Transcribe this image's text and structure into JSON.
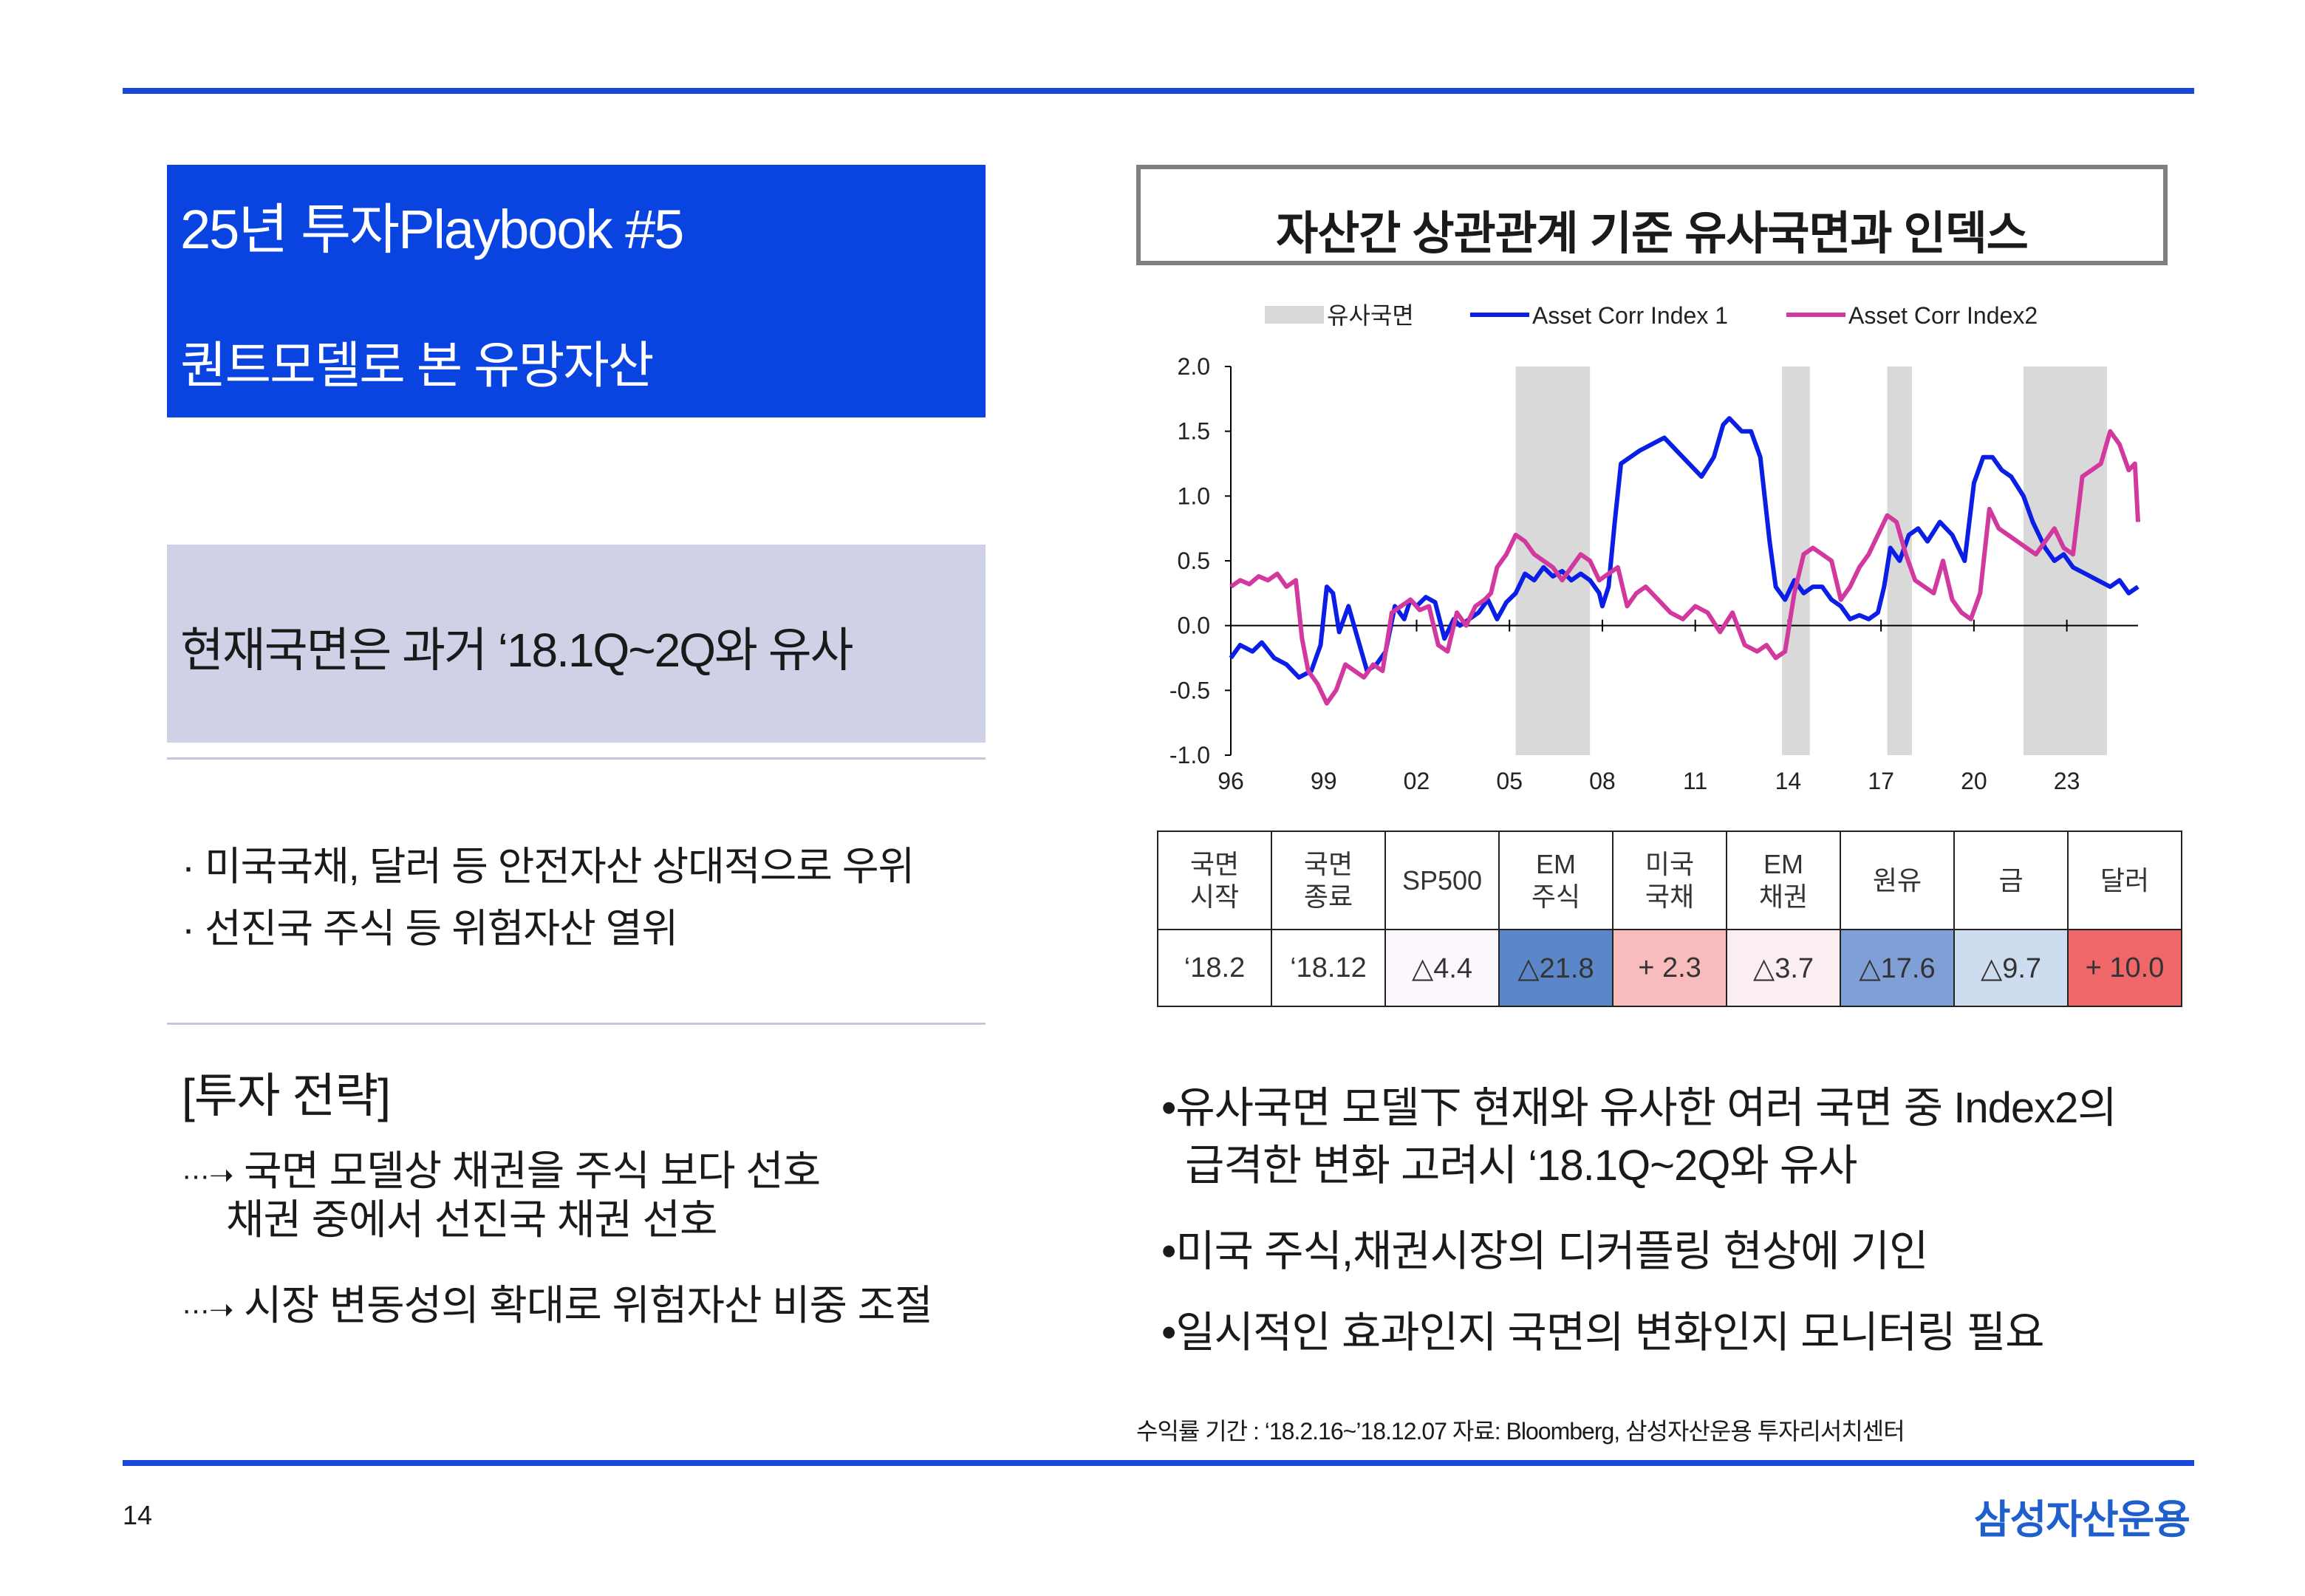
{
  "title": {
    "line1": "25년 투자Playbook #5",
    "line2": "퀀트모델로 본 유망자산"
  },
  "phase": {
    "text": "현재국면은 과거 ‘18.1Q~2Q와 유사"
  },
  "bullets": [
    "· 미국국채, 달러 등 안전자산 상대적으로  우위",
    "· 선진국 주식 등 위험자산 열위"
  ],
  "strategy": {
    "heading": "[투자 전략]",
    "arrow": "···➝",
    "items": [
      {
        "lines": [
          "국면 모델상 채권을 주식 보다 선호",
          "채권 중에서 선진국 채권 선호"
        ]
      },
      {
        "lines": [
          "시장 변동성의 확대로 위험자산 비중 조절"
        ]
      }
    ]
  },
  "chart_title": "자산간 상관관계 기준 유사국면과 인덱스",
  "chart_data": {
    "type": "line",
    "title": "자산간 상관관계 기준 유사국면과 인덱스",
    "legend": [
      "유사국면",
      "Asset Corr Index 1",
      "Asset Corr Index2"
    ],
    "legend_position": "top",
    "x_ticks": [
      "96",
      "99",
      "02",
      "05",
      "08",
      "11",
      "14",
      "17",
      "20",
      "23"
    ],
    "y_ticks": [
      "2.0",
      "1.5",
      "1.0",
      "0.5",
      "0.0",
      "-0.5",
      "-1.0"
    ],
    "xlim": [
      1996,
      2025.3
    ],
    "ylim": [
      -1.0,
      2.0
    ],
    "shaded_periods": [
      [
        2005.2,
        2007.6
      ],
      [
        2013.8,
        2014.7
      ],
      [
        2017.2,
        2018.0
      ],
      [
        2021.6,
        2024.3
      ]
    ],
    "colors": {
      "shade": "#d9d9d9",
      "index1": "#0a1ee6",
      "index2": "#d2399f"
    },
    "series": [
      {
        "name": "Asset Corr Index 1",
        "x": [
          1996.0,
          1996.3,
          1996.7,
          1997.0,
          1997.4,
          1997.8,
          1998.2,
          1998.6,
          1998.9,
          1999.1,
          1999.3,
          1999.5,
          1999.8,
          2000.1,
          2000.4,
          2000.7,
          2001.0,
          2001.3,
          2001.6,
          2001.8,
          2002.0,
          2002.3,
          2002.6,
          2002.9,
          2003.2,
          2003.4,
          2003.7,
          2004.0,
          2004.3,
          2004.6,
          2004.9,
          2005.2,
          2005.5,
          2005.8,
          2006.1,
          2006.4,
          2006.7,
          2007.0,
          2007.3,
          2007.6,
          2007.9,
          2008.0,
          2008.2,
          2008.4,
          2008.6,
          2008.9,
          2009.2,
          2009.6,
          2010.0,
          2010.4,
          2010.8,
          2011.2,
          2011.6,
          2011.9,
          2012.1,
          2012.3,
          2012.5,
          2012.8,
          2013.1,
          2013.4,
          2013.6,
          2013.9,
          2014.2,
          2014.5,
          2014.8,
          2015.1,
          2015.4,
          2015.7,
          2016.0,
          2016.3,
          2016.6,
          2016.9,
          2017.1,
          2017.3,
          2017.6,
          2017.9,
          2018.2,
          2018.5,
          2018.9,
          2019.3,
          2019.7,
          2020.0,
          2020.3,
          2020.6,
          2020.9,
          2021.2,
          2021.6,
          2021.9,
          2022.3,
          2022.6,
          2022.9,
          2023.2,
          2023.6,
          2024.0,
          2024.4,
          2024.7,
          2025.0,
          2025.3
        ],
        "y": [
          -0.25,
          -0.15,
          -0.2,
          -0.13,
          -0.25,
          -0.3,
          -0.4,
          -0.35,
          -0.15,
          0.3,
          0.25,
          -0.05,
          0.15,
          -0.1,
          -0.35,
          -0.3,
          -0.2,
          0.15,
          0.05,
          0.2,
          0.15,
          0.22,
          0.18,
          -0.1,
          0.05,
          0.0,
          0.05,
          0.1,
          0.2,
          0.05,
          0.18,
          0.25,
          0.4,
          0.35,
          0.45,
          0.38,
          0.42,
          0.35,
          0.4,
          0.35,
          0.25,
          0.15,
          0.3,
          0.8,
          1.25,
          1.3,
          1.35,
          1.4,
          1.45,
          1.35,
          1.25,
          1.15,
          1.3,
          1.55,
          1.6,
          1.55,
          1.5,
          1.5,
          1.3,
          0.65,
          0.3,
          0.2,
          0.35,
          0.25,
          0.3,
          0.3,
          0.2,
          0.15,
          0.05,
          0.08,
          0.05,
          0.1,
          0.3,
          0.6,
          0.5,
          0.7,
          0.75,
          0.65,
          0.8,
          0.7,
          0.5,
          1.1,
          1.3,
          1.3,
          1.2,
          1.15,
          1.0,
          0.8,
          0.6,
          0.5,
          0.55,
          0.45,
          0.4,
          0.35,
          0.3,
          0.35,
          0.25,
          0.3
        ]
      },
      {
        "name": "Asset Corr Index2",
        "x": [
          1996.0,
          1996.3,
          1996.6,
          1996.9,
          1997.2,
          1997.5,
          1997.8,
          1998.1,
          1998.3,
          1998.5,
          1998.8,
          1999.1,
          1999.4,
          1999.7,
          2000.0,
          2000.3,
          2000.6,
          2000.9,
          2001.2,
          2001.5,
          2001.8,
          2002.1,
          2002.4,
          2002.7,
          2003.0,
          2003.3,
          2003.6,
          2003.9,
          2004.2,
          2004.4,
          2004.6,
          2004.9,
          2005.2,
          2005.5,
          2005.8,
          2006.1,
          2006.4,
          2006.7,
          2007.0,
          2007.3,
          2007.6,
          2007.9,
          2008.2,
          2008.5,
          2008.8,
          2009.1,
          2009.4,
          2009.8,
          2010.2,
          2010.6,
          2011.0,
          2011.4,
          2011.8,
          2012.2,
          2012.6,
          2013.0,
          2013.3,
          2013.6,
          2013.9,
          2014.2,
          2014.5,
          2014.8,
          2015.1,
          2015.4,
          2015.7,
          2016.0,
          2016.3,
          2016.6,
          2016.9,
          2017.2,
          2017.5,
          2017.8,
          2018.1,
          2018.4,
          2018.7,
          2019.0,
          2019.3,
          2019.6,
          2019.9,
          2020.2,
          2020.5,
          2020.8,
          2021.1,
          2021.4,
          2021.7,
          2022.0,
          2022.3,
          2022.6,
          2022.9,
          2023.2,
          2023.5,
          2023.8,
          2024.1,
          2024.4,
          2024.7,
          2025.0,
          2025.2,
          2025.3
        ],
        "y": [
          0.3,
          0.35,
          0.32,
          0.38,
          0.35,
          0.4,
          0.3,
          0.35,
          -0.1,
          -0.35,
          -0.45,
          -0.6,
          -0.5,
          -0.3,
          -0.35,
          -0.4,
          -0.3,
          -0.35,
          0.1,
          0.15,
          0.2,
          0.12,
          0.15,
          -0.15,
          -0.2,
          0.1,
          0.0,
          0.15,
          0.2,
          0.25,
          0.45,
          0.55,
          0.7,
          0.65,
          0.55,
          0.5,
          0.45,
          0.35,
          0.45,
          0.55,
          0.5,
          0.35,
          0.4,
          0.45,
          0.15,
          0.25,
          0.3,
          0.2,
          0.1,
          0.05,
          0.15,
          0.1,
          -0.05,
          0.1,
          -0.15,
          -0.2,
          -0.15,
          -0.25,
          -0.2,
          0.25,
          0.55,
          0.6,
          0.55,
          0.5,
          0.2,
          0.3,
          0.45,
          0.55,
          0.7,
          0.85,
          0.8,
          0.55,
          0.35,
          0.3,
          0.25,
          0.5,
          0.2,
          0.1,
          0.05,
          0.25,
          0.9,
          0.75,
          0.7,
          0.65,
          0.6,
          0.55,
          0.65,
          0.75,
          0.6,
          0.55,
          1.15,
          1.2,
          1.25,
          1.5,
          1.4,
          1.2,
          1.25,
          0.8
        ]
      }
    ]
  },
  "returns_table": {
    "headers": [
      [
        "국면",
        "시작"
      ],
      [
        "국면",
        "종료"
      ],
      [
        "SP500"
      ],
      [
        "EM",
        "주식"
      ],
      [
        "미국",
        "국채"
      ],
      [
        "EM",
        "채권"
      ],
      [
        "원유"
      ],
      [
        "금"
      ],
      [
        "달러"
      ]
    ],
    "values": [
      "‘18.2",
      "‘18.12",
      "△4.4",
      "△21.8",
      "+ 2.3",
      "△3.7",
      "△17.6",
      "△9.7",
      "+ 10.0"
    ],
    "cell_colors": [
      "#ffffff",
      "#ffffff",
      "#fbf7fd",
      "#5b87c8",
      "#f8bcbd",
      "#fbeef0",
      "#7f9fd6",
      "#cddcee",
      "#f0676a"
    ]
  },
  "right_bullets": {
    "marker": "•",
    "items": [
      {
        "lines": [
          "유사국면 모델下 현재와 유사한 여러 국면 중 Index2의",
          "급격한 변화 고려시 ‘18.1Q~2Q와 유사"
        ]
      },
      {
        "lines": [
          "미국 주식,채권시장의 디커플링 현상에 기인"
        ]
      },
      {
        "lines": [
          "일시적인 효과인지 국면의 변화인지 모니터링 필요"
        ]
      }
    ]
  },
  "source": "수익률 기간 : ‘18.2.16~’18.12.07   자료: Bloomberg, 삼성자산운용 투자리서치센터",
  "footer": {
    "page": "14",
    "brand": "삼성자산운용"
  }
}
